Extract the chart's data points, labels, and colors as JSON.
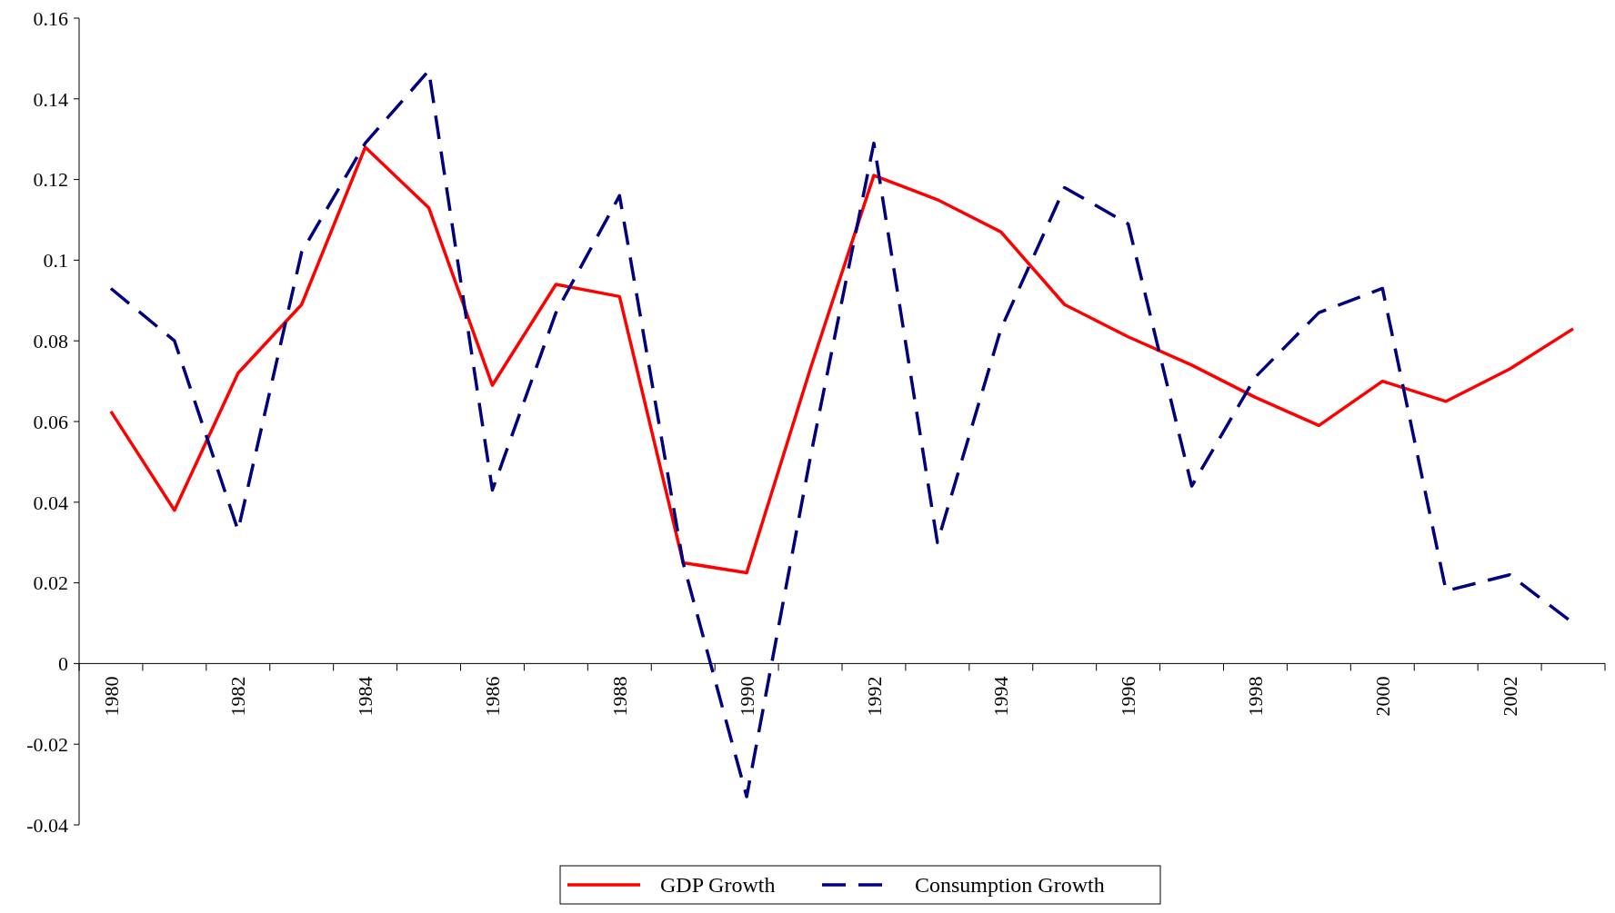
{
  "chart_data": {
    "type": "line",
    "categories": [
      "1980",
      null,
      "1982",
      null,
      "1984",
      null,
      "1986",
      null,
      "1988",
      null,
      "1990",
      null,
      "1992",
      null,
      "1994",
      null,
      "1996",
      null,
      "1998",
      null,
      "2000",
      null,
      "2002",
      null
    ],
    "series": [
      {
        "name": "GDP Growth",
        "color": "#ff0000",
        "line_style": "solid",
        "values": [
          0.0625,
          0.038,
          0.072,
          0.089,
          0.128,
          0.113,
          0.069,
          0.094,
          0.091,
          0.025,
          0.0225,
          0.073,
          0.121,
          0.115,
          0.107,
          0.089,
          0.081,
          0.074,
          0.066,
          0.059,
          0.07,
          0.065,
          0.073,
          0.083
        ]
      },
      {
        "name": "Consumption Growth",
        "color": "#000080",
        "line_style": "dashed",
        "values": [
          0.093,
          0.08,
          0.033,
          0.102,
          0.129,
          0.147,
          0.043,
          0.087,
          0.116,
          0.025,
          -0.033,
          0.051,
          0.129,
          0.03,
          0.083,
          0.118,
          0.109,
          0.044,
          0.071,
          0.087,
          0.093,
          0.018,
          0.022,
          0.01
        ]
      }
    ],
    "ylim": [
      -0.04,
      0.16
    ],
    "yticks": [
      -0.04,
      -0.02,
      0,
      0.02,
      0.04,
      0.06,
      0.08,
      0.1,
      0.12,
      0.14,
      0.16
    ],
    "grid": false,
    "legend": "bottom",
    "marker": "none"
  }
}
